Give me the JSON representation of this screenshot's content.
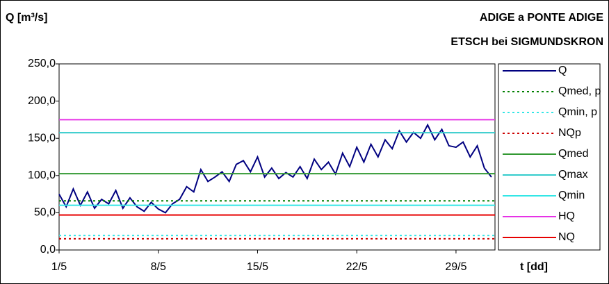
{
  "chart_data": {
    "type": "line",
    "title": "ADIGE a PONTE ADIGE",
    "subtitle": "ETSCH bei SIGMUNDSKRON",
    "y_label": "Q [m³/s]",
    "x_label": "t [dd]",
    "xlim": [
      1,
      31.75
    ],
    "xticks": [
      {
        "value": 1,
        "label": "1/5"
      },
      {
        "value": 8,
        "label": "8/5"
      },
      {
        "value": 15,
        "label": "15/5"
      },
      {
        "value": 22,
        "label": "22/5"
      },
      {
        "value": 29,
        "label": "29/5"
      }
    ],
    "ylim": [
      0,
      250
    ],
    "yticks": [
      {
        "value": 0,
        "label": "0,0"
      },
      {
        "value": 50,
        "label": "50,0"
      },
      {
        "value": 100,
        "label": "100,0"
      },
      {
        "value": 150,
        "label": "150,0"
      },
      {
        "value": 200,
        "label": "200,0"
      },
      {
        "value": 250,
        "label": "250,0"
      }
    ],
    "x": [
      1,
      1.5,
      2,
      2.5,
      3,
      3.5,
      4,
      4.5,
      5,
      5.5,
      6,
      6.5,
      7,
      7.5,
      8,
      8.5,
      9,
      9.5,
      10,
      10.5,
      11,
      11.5,
      12,
      12.5,
      13,
      13.5,
      14,
      14.5,
      15,
      15.5,
      16,
      16.5,
      17,
      17.5,
      18,
      18.5,
      19,
      19.5,
      20,
      20.5,
      21,
      21.5,
      22,
      22.5,
      23,
      23.5,
      24,
      24.5,
      25,
      25.5,
      26,
      26.5,
      27,
      27.5,
      28,
      28.5,
      29,
      29.5,
      30,
      30.5,
      31,
      31.5
    ],
    "series": [
      {
        "name": "Q",
        "color": "#000080",
        "values": [
          75,
          58,
          82,
          60,
          78,
          56,
          68,
          62,
          80,
          56,
          70,
          58,
          52,
          64,
          55,
          50,
          62,
          68,
          85,
          78,
          108,
          92,
          98,
          105,
          92,
          115,
          120,
          105,
          125,
          98,
          110,
          96,
          104,
          98,
          112,
          96,
          122,
          108,
          118,
          102,
          130,
          112,
          138,
          118,
          142,
          125,
          148,
          136,
          160,
          145,
          158,
          150,
          168,
          148,
          162,
          140,
          138,
          145,
          125,
          140,
          110,
          98
        ]
      },
      {
        "name": "Qmed, p",
        "color": "#008000",
        "level": 66,
        "dash": "3,4"
      },
      {
        "name": "Qmin, p",
        "color": "#33e6e6",
        "level": 19.5,
        "dash": "3,4"
      },
      {
        "name": "NQp",
        "color": "#cc0000",
        "level": 15,
        "dash": "3,4"
      },
      {
        "name": "Qmed",
        "color": "#339933",
        "level": 102.5
      },
      {
        "name": "Qmax",
        "color": "#33cccc",
        "level": 157.5
      },
      {
        "name": "Qmin",
        "color": "#33e6e6",
        "level": 60
      },
      {
        "name": "HQ",
        "color": "#e633e6",
        "level": 175
      },
      {
        "name": "NQ",
        "color": "#e60000",
        "level": 47
      }
    ]
  }
}
